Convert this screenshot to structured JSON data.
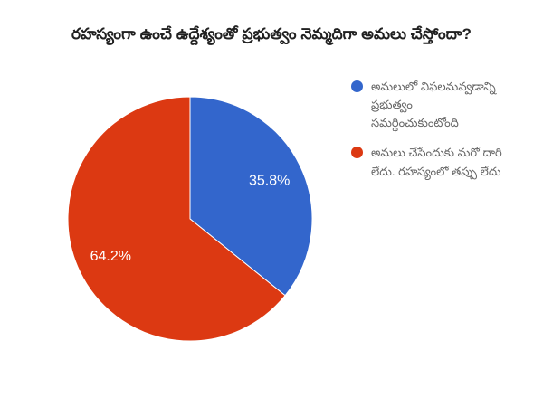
{
  "chart_data": {
    "type": "pie",
    "title": "రహస్యంగా ఉంచే ఉద్దేశ్యంతో ప్రభుత్వం నెమ్మదిగా అమలు చేస్తోందా?",
    "legend_position": "right",
    "start_angle_deg": 0,
    "label_color": "#ffffff",
    "slice_border_color": "#ffffff",
    "slices": [
      {
        "label": "అమలులో విఫలమవ్వడాన్ని ప్రభుత్వం సమర్థించుకుంటోంది",
        "value": 35.8,
        "display": "35.8%",
        "color": "#3366cc"
      },
      {
        "label": "అమలు చేసేందుకు మరో దారి లేదు. రహస్యంలో తప్పు లేదు",
        "value": 64.2,
        "display": "64.2%",
        "color": "#dc3912"
      }
    ]
  }
}
